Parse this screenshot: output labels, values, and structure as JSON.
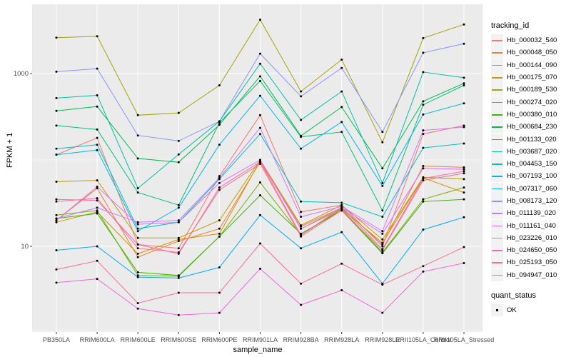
{
  "figure": {
    "background": "#FFFFFF",
    "panel_background": "#EBEBEB",
    "grid_color": "#FFFFFF",
    "tick_label_color": "#4D4D4D",
    "point_color": "#000000"
  },
  "chart_data": {
    "type": "line",
    "title": "",
    "xlabel": "sample_name",
    "ylabel": "FPKM + 1",
    "y_scale": "log10",
    "ylim": [
      1,
      6000
    ],
    "y_ticks": [
      1000,
      10
    ],
    "y_minor_ticks": [
      100,
      1
    ],
    "grid": "on",
    "legend_position": "right",
    "legend_title": "tracking_id",
    "quant_legend_title": "quant_status",
    "quant_legend_items": [
      "OK"
    ],
    "categories": [
      "PB350LA",
      "RRIM600LA",
      "RRIM600LE",
      "RRIM600SE",
      "RRIM600PE",
      "RRIM901LA",
      "RRIM928BA",
      "RRIM928LA",
      "RRIM928LE",
      "RRII105LA_Control",
      "RRII105LA_Stressed"
    ],
    "series": [
      {
        "name": "Hb_000032_540",
        "color": "#F8766D",
        "values": [
          115,
          180,
          10.5,
          9.5,
          65,
          330,
          25,
          30,
          10,
          200,
          250
        ]
      },
      {
        "name": "Hb_000048_050",
        "color": "#EA8331",
        "values": [
          20,
          47,
          7.5,
          11.5,
          16,
          95,
          17,
          28,
          10.5,
          85,
          82
        ]
      },
      {
        "name": "Hb_000144_090",
        "color": "#D89000",
        "values": [
          19,
          25,
          8.2,
          12,
          14,
          98,
          16,
          27,
          11,
          62,
          42
        ]
      },
      {
        "name": "Hb_000175_070",
        "color": "#C09B00",
        "values": [
          56,
          58,
          12.5,
          12.5,
          20,
          100,
          17.5,
          30,
          12,
          63,
          60
        ]
      },
      {
        "name": "Hb_000189_530",
        "color": "#A3A500",
        "values": [
          2600,
          2700,
          330,
          350,
          730,
          4200,
          620,
          1450,
          160,
          2570,
          3700
        ]
      },
      {
        "name": "Hb_000274_020",
        "color": "#7CAE00",
        "values": [
          23,
          26,
          4.6,
          4.5,
          13,
          55,
          13.5,
          27,
          8.5,
          35,
          48
        ]
      },
      {
        "name": "Hb_000380_010",
        "color": "#39B600",
        "values": [
          21,
          24,
          5,
          4.6,
          13,
          39,
          14,
          26,
          8.3,
          33,
          35
        ]
      },
      {
        "name": "Hb_000684_230",
        "color": "#00BB4E",
        "values": [
          370,
          415,
          104,
          94,
          255,
          930,
          190,
          410,
          80,
          477,
          770
        ]
      },
      {
        "name": "Hb_001133_020",
        "color": "#00BF7D",
        "values": [
          250,
          225,
          42,
          30,
          270,
          820,
          185,
          211,
          26,
          435,
          730
        ]
      },
      {
        "name": "Hb_003687_020",
        "color": "#00C1A3",
        "values": [
          520,
          560,
          47,
          116,
          280,
          1300,
          290,
          620,
          54,
          1040,
          895
        ]
      },
      {
        "name": "Hb_004453_150",
        "color": "#00BFC4",
        "values": [
          135,
          150,
          16,
          19,
          60,
          200,
          33,
          32,
          22,
          138,
          155
        ]
      },
      {
        "name": "Hb_007193_100",
        "color": "#00B8E7",
        "values": [
          115,
          130,
          15,
          28,
          150,
          553,
          135,
          275,
          50,
          336,
          452
        ]
      },
      {
        "name": "Hb_007317_060",
        "color": "#00ACFC",
        "values": [
          9,
          10,
          4.4,
          4.3,
          5.7,
          23,
          9.5,
          14.6,
          3.7,
          15.6,
          21.7
        ]
      },
      {
        "name": "Hb_008173_120",
        "color": "#8B93FF",
        "values": [
          1050,
          1140,
          192,
          166,
          280,
          1700,
          545,
          1160,
          211,
          1740,
          2215
        ]
      },
      {
        "name": "Hb_011139_020",
        "color": "#C77CFF",
        "values": [
          21,
          28,
          19,
          20,
          62,
          235,
          22,
          29,
          15,
          220,
          240
        ]
      },
      {
        "name": "Hb_011161_040",
        "color": "#E76BF3",
        "values": [
          20,
          49,
          18,
          19,
          54,
          100,
          16,
          28,
          14,
          80,
          78
        ]
      },
      {
        "name": "Hb_023226_010",
        "color": "#FA62DB",
        "values": [
          3.8,
          4.2,
          1.9,
          1.6,
          1.7,
          5.5,
          2.1,
          3.1,
          1.7,
          5.1,
          6.4
        ]
      },
      {
        "name": "Hb_024650_050",
        "color": "#FF62BC",
        "values": [
          35,
          34,
          10.5,
          8.2,
          48,
          95,
          13.5,
          28,
          9.3,
          61,
          74
        ]
      },
      {
        "name": "Hb_025193_050",
        "color": "#FF6A9A",
        "values": [
          5.4,
          6.8,
          2.2,
          2.9,
          2.9,
          10.8,
          3.7,
          6.3,
          3.6,
          5.9,
          9.8
        ]
      },
      {
        "name": "Hb_094947_010",
        "color": "#FC717F",
        "values": [
          33,
          36,
          9.5,
          8.5,
          45,
          90,
          13,
          26,
          9,
          58,
          70
        ]
      }
    ]
  }
}
